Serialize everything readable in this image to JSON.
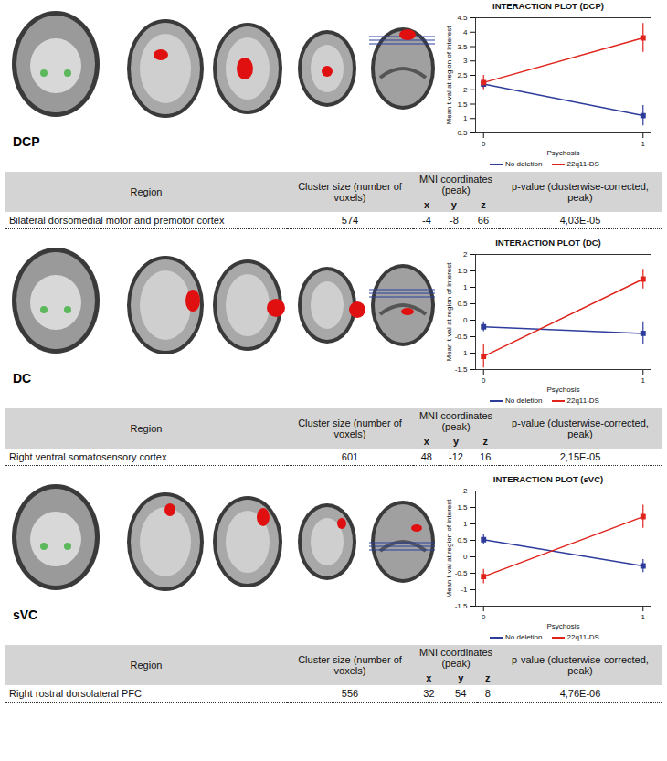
{
  "chart_data": [
    {
      "type": "line",
      "title": "INTERACTION PLOT (DCP)",
      "x_label": "Psychosis",
      "y_label": "Mean t-val at region of interest",
      "x": [
        0,
        1
      ],
      "xlim": [
        -0.05,
        1.05
      ],
      "xticks": [
        0,
        1
      ],
      "ylim": [
        0.5,
        4.5
      ],
      "yticks": [
        0.5,
        1,
        1.5,
        2,
        2.5,
        3,
        3.5,
        4,
        4.5
      ],
      "grid": false,
      "legend": "bottom",
      "marker": "square",
      "series": [
        {
          "name": "No deletion",
          "color": "#2e3d9c",
          "values": [
            2.2,
            1.1
          ],
          "errors": [
            0.15,
            0.35
          ]
        },
        {
          "name": "22q11-DS",
          "color": "#e0241c",
          "values": [
            2.25,
            3.8
          ],
          "errors": [
            0.25,
            0.5
          ]
        }
      ]
    },
    {
      "type": "line",
      "title": "INTERACTION PLOT (DC)",
      "x_label": "Psychosis",
      "y_label": "Mean t-val at region of interest",
      "x": [
        0,
        1
      ],
      "xlim": [
        -0.05,
        1.05
      ],
      "xticks": [
        0,
        1
      ],
      "ylim": [
        -1.5,
        2
      ],
      "yticks": [
        -1.5,
        -1,
        -0.5,
        0,
        0.5,
        1,
        1.5,
        2
      ],
      "grid": false,
      "legend": "bottom",
      "marker": "square",
      "series": [
        {
          "name": "No deletion",
          "color": "#2e3d9c",
          "values": [
            -0.2,
            -0.4
          ],
          "errors": [
            0.15,
            0.35
          ]
        },
        {
          "name": "22q11-DS",
          "color": "#e0241c",
          "values": [
            -1.1,
            1.25
          ],
          "errors": [
            0.35,
            0.3
          ]
        }
      ]
    },
    {
      "type": "line",
      "title": "INTERACTION PLOT (sVC)",
      "x_label": "Psychosis",
      "y_label": "Mean t-val at region of interest",
      "x": [
        0,
        1
      ],
      "xlim": [
        -0.05,
        1.05
      ],
      "xticks": [
        0,
        1
      ],
      "ylim": [
        -1.5,
        2
      ],
      "yticks": [
        -1.5,
        -1,
        -0.5,
        0,
        0.5,
        1,
        1.5,
        2
      ],
      "grid": false,
      "legend": "bottom",
      "marker": "square",
      "series": [
        {
          "name": "No deletion",
          "color": "#2e3d9c",
          "values": [
            0.52,
            -0.28
          ],
          "errors": [
            0.15,
            0.2
          ]
        },
        {
          "name": "22q11-DS",
          "color": "#e0241c",
          "values": [
            -0.6,
            1.22
          ],
          "errors": [
            0.22,
            0.35
          ]
        }
      ]
    }
  ],
  "panels": [
    {
      "label": "DCP",
      "table": {
        "header": [
          "Region",
          "Cluster size (number of voxels)",
          "MNI coordinates (peak)",
          "p-value (clusterwise-corrected, peak)"
        ],
        "subheader": [
          "x",
          "y",
          "z"
        ],
        "rows": [
          [
            "Bilateral dorsomedial motor and premotor cortex",
            574,
            -4,
            -8,
            66,
            "4,03E-05"
          ]
        ]
      }
    },
    {
      "label": "DC",
      "table": {
        "header": [
          "Region",
          "Cluster size (number of voxels)",
          "MNI coordinates (peak)",
          "p-value (clusterwise-corrected, peak)"
        ],
        "subheader": [
          "x",
          "y",
          "z"
        ],
        "rows": [
          [
            "Right ventral somatosensory cortex",
            601,
            48,
            -12,
            16,
            "2,15E-05"
          ]
        ]
      }
    },
    {
      "label": "sVC",
      "table": {
        "header": [
          "Region",
          "Cluster size (number of voxels)",
          "MNI coordinates (peak)",
          "p-value (clusterwise-corrected, peak)"
        ],
        "subheader": [
          "x",
          "y",
          "z"
        ],
        "rows": [
          [
            "Right rostral dorsolateral PFC",
            556,
            32,
            54,
            8,
            "4,76E-06"
          ]
        ]
      }
    }
  ]
}
